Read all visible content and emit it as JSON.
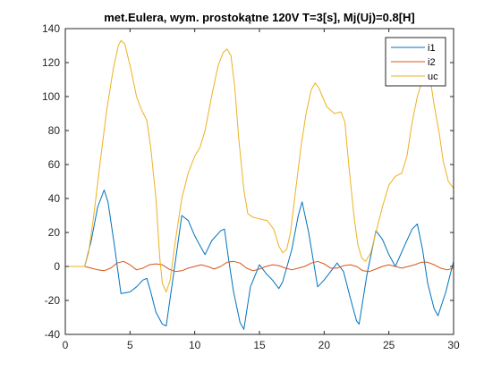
{
  "chart_data": {
    "type": "line",
    "title": "met.Eulera, wym. prostokątne 120V T=3[s], Mj(Uj)=0.8[H]",
    "xlabel": "",
    "ylabel": "",
    "xlim": [
      0,
      30
    ],
    "ylim": [
      -40,
      140
    ],
    "xticks": [
      0,
      5,
      10,
      15,
      20,
      25,
      30
    ],
    "yticks": [
      -40,
      -20,
      0,
      20,
      40,
      60,
      80,
      100,
      120,
      140
    ],
    "xtick_labels": [
      "0",
      "5",
      "10",
      "15",
      "20",
      "25",
      "30"
    ],
    "ytick_labels": [
      "-40",
      "-20",
      "0",
      "20",
      "40",
      "60",
      "80",
      "100",
      "120",
      "140"
    ],
    "grid": false,
    "legend_position": "top-right",
    "series": [
      {
        "name": "i1",
        "color": "#0072BD",
        "points": [
          [
            0,
            0
          ],
          [
            1.5,
            0
          ],
          [
            2,
            15
          ],
          [
            2.5,
            35
          ],
          [
            3,
            45
          ],
          [
            3.3,
            38
          ],
          [
            3.8,
            12
          ],
          [
            4.3,
            -16
          ],
          [
            5,
            -15
          ],
          [
            5.5,
            -12
          ],
          [
            6,
            -8
          ],
          [
            6.3,
            -7
          ],
          [
            6.6,
            -15
          ],
          [
            7,
            -27
          ],
          [
            7.5,
            -34
          ],
          [
            7.8,
            -35
          ],
          [
            8.3,
            -8
          ],
          [
            9,
            30
          ],
          [
            9.5,
            27
          ],
          [
            10,
            18
          ],
          [
            10.5,
            11
          ],
          [
            10.8,
            7
          ],
          [
            11.3,
            15
          ],
          [
            12,
            21
          ],
          [
            12.3,
            22
          ],
          [
            12.6,
            5
          ],
          [
            13,
            -15
          ],
          [
            13.5,
            -33
          ],
          [
            13.8,
            -37
          ],
          [
            14.3,
            -12
          ],
          [
            15,
            1
          ],
          [
            15.5,
            -4
          ],
          [
            16,
            -8
          ],
          [
            16.5,
            -13
          ],
          [
            16.8,
            -9
          ],
          [
            17.5,
            10
          ],
          [
            18,
            30
          ],
          [
            18.3,
            38
          ],
          [
            18.8,
            20
          ],
          [
            19.5,
            -12
          ],
          [
            20,
            -8
          ],
          [
            20.5,
            -3
          ],
          [
            21,
            2
          ],
          [
            21.5,
            -3
          ],
          [
            22,
            -18
          ],
          [
            22.5,
            -32
          ],
          [
            22.7,
            -34
          ],
          [
            23.3,
            -5
          ],
          [
            24,
            21
          ],
          [
            24.5,
            16
          ],
          [
            25,
            7
          ],
          [
            25.5,
            0
          ],
          [
            26.2,
            12
          ],
          [
            26.8,
            22
          ],
          [
            27.2,
            25
          ],
          [
            27.6,
            10
          ],
          [
            28,
            -10
          ],
          [
            28.5,
            -25
          ],
          [
            28.8,
            -29
          ],
          [
            29.4,
            -15
          ],
          [
            30,
            3
          ]
        ]
      },
      {
        "name": "i2",
        "color": "#D95319",
        "points": [
          [
            0,
            0
          ],
          [
            1.5,
            0
          ],
          [
            2,
            -1
          ],
          [
            2.5,
            -2
          ],
          [
            3,
            -2.5
          ],
          [
            3.5,
            -1
          ],
          [
            4,
            2
          ],
          [
            4.5,
            3
          ],
          [
            5,
            1
          ],
          [
            5.5,
            -2
          ],
          [
            6,
            -1
          ],
          [
            6.5,
            1
          ],
          [
            7,
            1.5
          ],
          [
            7.5,
            1
          ],
          [
            8,
            -1.5
          ],
          [
            8.5,
            -3
          ],
          [
            9,
            -2.5
          ],
          [
            9.5,
            -1
          ],
          [
            10,
            0
          ],
          [
            10.5,
            1
          ],
          [
            11,
            0
          ],
          [
            11.5,
            -1.5
          ],
          [
            12,
            0
          ],
          [
            12.5,
            2.5
          ],
          [
            13,
            3
          ],
          [
            13.5,
            2
          ],
          [
            14,
            -1
          ],
          [
            14.5,
            -2.5
          ],
          [
            15,
            -1.5
          ],
          [
            15.5,
            0
          ],
          [
            16,
            1
          ],
          [
            16.5,
            0.5
          ],
          [
            17,
            -1
          ],
          [
            17.5,
            -2
          ],
          [
            18,
            -1
          ],
          [
            18.5,
            0
          ],
          [
            19,
            2
          ],
          [
            19.5,
            3
          ],
          [
            20,
            1.5
          ],
          [
            20.5,
            -1
          ],
          [
            21,
            -1
          ],
          [
            21.5,
            0.5
          ],
          [
            22,
            1
          ],
          [
            22.5,
            0
          ],
          [
            23,
            -2.5
          ],
          [
            23.5,
            -3
          ],
          [
            24,
            -1.5
          ],
          [
            24.5,
            0
          ],
          [
            25,
            1
          ],
          [
            25.5,
            0
          ],
          [
            26,
            -1
          ],
          [
            26.5,
            0
          ],
          [
            27,
            1
          ],
          [
            27.5,
            2.5
          ],
          [
            28,
            2.5
          ],
          [
            28.5,
            1
          ],
          [
            29,
            -1
          ],
          [
            29.5,
            -2
          ],
          [
            30,
            -1
          ]
        ]
      },
      {
        "name": "uc",
        "color": "#EDB120",
        "points": [
          [
            0,
            0
          ],
          [
            1.5,
            0
          ],
          [
            1.8,
            8
          ],
          [
            2.2,
            30
          ],
          [
            2.7,
            62
          ],
          [
            3.2,
            92
          ],
          [
            3.7,
            116
          ],
          [
            4.1,
            130
          ],
          [
            4.3,
            133
          ],
          [
            4.6,
            131
          ],
          [
            5.1,
            115
          ],
          [
            5.5,
            100
          ],
          [
            5.9,
            92
          ],
          [
            6.3,
            86
          ],
          [
            6.6,
            70
          ],
          [
            7,
            40
          ],
          [
            7.3,
            5
          ],
          [
            7.5,
            -10
          ],
          [
            7.8,
            -15
          ],
          [
            8.1,
            -8
          ],
          [
            8.5,
            15
          ],
          [
            9,
            40
          ],
          [
            9.5,
            55
          ],
          [
            10,
            65
          ],
          [
            10.4,
            70
          ],
          [
            10.8,
            80
          ],
          [
            11.3,
            100
          ],
          [
            11.8,
            118
          ],
          [
            12.2,
            126
          ],
          [
            12.5,
            128
          ],
          [
            12.8,
            124
          ],
          [
            13.1,
            105
          ],
          [
            13.4,
            75
          ],
          [
            13.8,
            45
          ],
          [
            14.1,
            31
          ],
          [
            14.5,
            29
          ],
          [
            15,
            28
          ],
          [
            15.6,
            27
          ],
          [
            16.1,
            22
          ],
          [
            16.5,
            12
          ],
          [
            16.8,
            8
          ],
          [
            17.1,
            10
          ],
          [
            17.4,
            20
          ],
          [
            17.8,
            45
          ],
          [
            18.2,
            70
          ],
          [
            18.6,
            90
          ],
          [
            19,
            104
          ],
          [
            19.3,
            108
          ],
          [
            19.6,
            105
          ],
          [
            20.2,
            94
          ],
          [
            20.8,
            90
          ],
          [
            21.3,
            91
          ],
          [
            21.6,
            85
          ],
          [
            21.9,
            60
          ],
          [
            22.3,
            30
          ],
          [
            22.6,
            13
          ],
          [
            22.9,
            5
          ],
          [
            23.2,
            3
          ],
          [
            23.6,
            8
          ],
          [
            24,
            20
          ],
          [
            24.5,
            35
          ],
          [
            25,
            48
          ],
          [
            25.5,
            53
          ],
          [
            26,
            55
          ],
          [
            26.4,
            65
          ],
          [
            26.8,
            85
          ],
          [
            27.2,
            100
          ],
          [
            27.6,
            110
          ],
          [
            27.9,
            115
          ],
          [
            28.2,
            110
          ],
          [
            28.5,
            95
          ],
          [
            28.9,
            78
          ],
          [
            29.2,
            62
          ],
          [
            29.6,
            50
          ],
          [
            30,
            46
          ]
        ]
      }
    ]
  }
}
